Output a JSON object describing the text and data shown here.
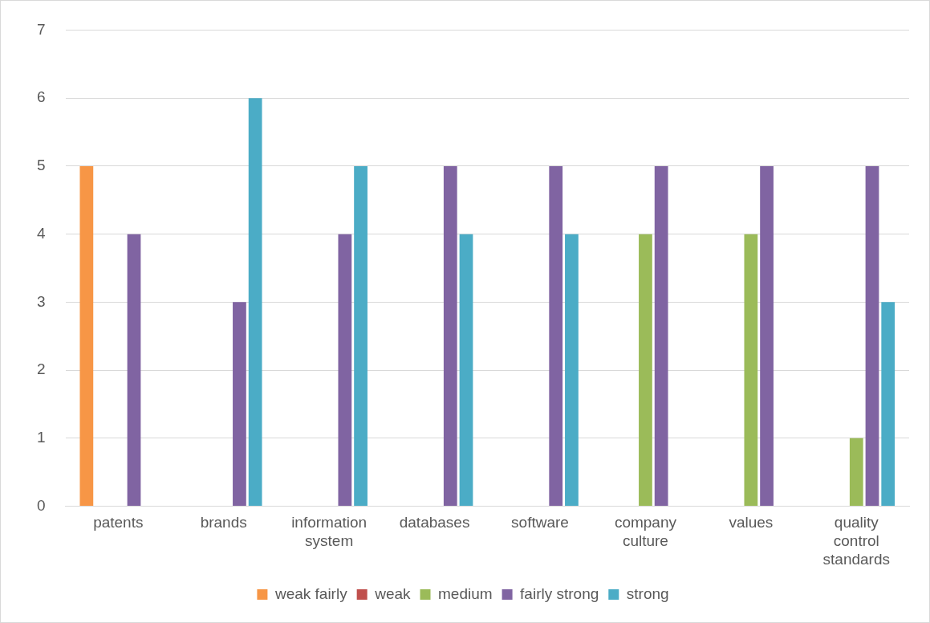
{
  "chart_data": {
    "type": "bar",
    "categories": [
      "patents",
      "brands",
      "information system",
      "databases",
      "software",
      "company culture",
      "values",
      "quality control standards"
    ],
    "series": [
      {
        "name": "weak fairly",
        "color": "#f79646",
        "values": [
          5,
          0,
          0,
          0,
          0,
          0,
          0,
          0
        ]
      },
      {
        "name": "weak",
        "color": "#c0504d",
        "values": [
          0,
          0,
          0,
          0,
          0,
          0,
          0,
          0
        ]
      },
      {
        "name": "medium",
        "color": "#9bbb59",
        "values": [
          0,
          0,
          0,
          0,
          0,
          4,
          4,
          1
        ]
      },
      {
        "name": "fairly strong",
        "color": "#8064a2",
        "values": [
          4,
          3,
          4,
          5,
          5,
          5,
          5,
          5
        ]
      },
      {
        "name": "strong",
        "color": "#4bacc6",
        "values": [
          0,
          6,
          5,
          4,
          4,
          0,
          0,
          3
        ]
      }
    ],
    "ylim": [
      0,
      7
    ],
    "yticks": [
      0,
      1,
      2,
      3,
      4,
      5,
      6,
      7
    ],
    "grid": "y",
    "legend": "bottom"
  }
}
